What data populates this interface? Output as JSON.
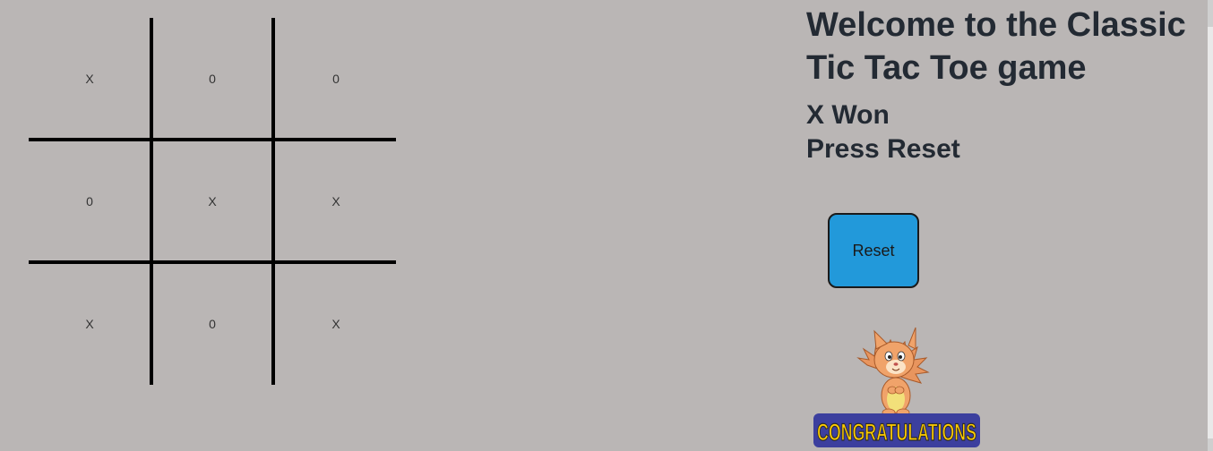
{
  "game": {
    "title": "Welcome to the Classic Tic Tac Toe game",
    "status_line1": "X Won",
    "status_line2": "Press Reset",
    "reset_label": "Reset",
    "banner_text": "CONGRATULATIONS",
    "board": [
      [
        "X",
        "0",
        "0"
      ],
      [
        "0",
        "X",
        "X"
      ],
      [
        "X",
        "0",
        "X"
      ]
    ]
  },
  "colors": {
    "background": "#bab6b5",
    "reset_button": "#2299da",
    "grid": "#000000",
    "banner_text": "#ffcc00",
    "banner_bg": "#3c3f9e"
  }
}
